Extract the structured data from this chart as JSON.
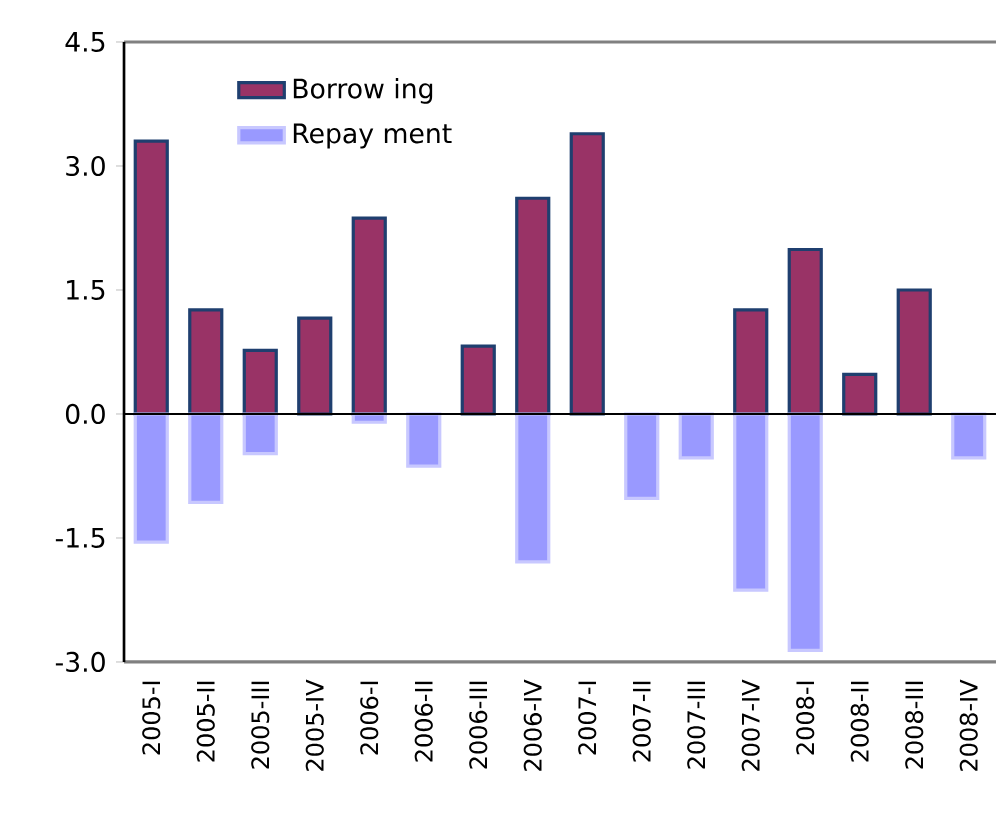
{
  "chart_data": {
    "type": "bar",
    "categories": [
      "2005-I",
      "2005-II",
      "2005-III",
      "2005-IV",
      "2006-I",
      "2006-II",
      "2006-III",
      "2006-IV",
      "2007-I",
      "2007-II",
      "2007-III",
      "2007-IV",
      "2008-I",
      "2008-II",
      "2008-III",
      "2008-IV"
    ],
    "series": [
      {
        "name": "Borrow ing",
        "color": "#993366",
        "values": [
          3.3,
          1.26,
          0.77,
          1.16,
          2.37,
          null,
          0.82,
          2.61,
          3.39,
          null,
          null,
          1.26,
          1.99,
          0.48,
          1.5,
          null
        ]
      },
      {
        "name": "Repay ment",
        "color": "#9999ff",
        "values": [
          -1.55,
          -1.07,
          -0.48,
          null,
          -0.1,
          -0.63,
          null,
          -1.79,
          null,
          -1.02,
          -0.53,
          -2.13,
          -2.86,
          null,
          null,
          -0.53
        ]
      }
    ],
    "ylim": [
      -3.0,
      4.5
    ],
    "yticks": [
      {
        "value": -3.0,
        "label": "-3.0"
      },
      {
        "value": -1.5,
        "label": "-1.5"
      },
      {
        "value": 0.0,
        "label": "0.0"
      },
      {
        "value": 1.5,
        "label": "1.5"
      },
      {
        "value": 3.0,
        "label": "3.0"
      },
      {
        "value": 4.5,
        "label": "4.5"
      }
    ],
    "legend": "top left"
  }
}
